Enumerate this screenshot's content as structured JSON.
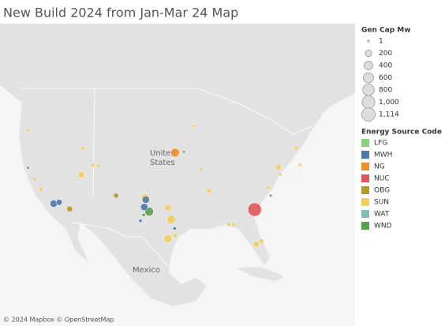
{
  "title": "New Build 2024 from Jan-Mar 24 Map",
  "map_labels": {
    "united_states": [
      "United",
      "States"
    ],
    "mexico": "Mexico"
  },
  "attribution": "© 2024 Mapbox © OpenStreetMap",
  "size_legend": {
    "title": "Gen Cap Mw",
    "values": [
      1,
      200,
      400,
      600,
      800,
      {
        "value": 1000,
        "label": "1,000"
      },
      {
        "value": 1114,
        "label": "1,114"
      }
    ]
  },
  "color_legend": {
    "title": "Energy Source Code",
    "items": [
      {
        "code": "LFG",
        "color": "#8cd17d"
      },
      {
        "code": "MWH",
        "color": "#4e79a7"
      },
      {
        "code": "NG",
        "color": "#f28e2b"
      },
      {
        "code": "NUC",
        "color": "#e15759"
      },
      {
        "code": "OBG",
        "color": "#b6992d"
      },
      {
        "code": "SUN",
        "color": "#f1ce63"
      },
      {
        "code": "WAT",
        "color": "#86bcb6"
      },
      {
        "code": "WND",
        "color": "#59a14f"
      }
    ]
  },
  "points": [
    {
      "code": "NUC",
      "lon": -81.8,
      "lat": 33.1,
      "mw": 1114
    },
    {
      "code": "NG",
      "lon": -96.2,
      "lat": 41.3,
      "mw": 400
    },
    {
      "code": "WND",
      "lon": -100.9,
      "lat": 32.8,
      "mw": 400
    },
    {
      "code": "MWH",
      "lon": -101.5,
      "lat": 34.6,
      "mw": 250
    },
    {
      "code": "MWH",
      "lon": -101.8,
      "lat": 33.5,
      "mw": 250
    },
    {
      "code": "MWH",
      "lon": -118.2,
      "lat": 34.0,
      "mw": 250
    },
    {
      "code": "MWH",
      "lon": -117.2,
      "lat": 34.2,
      "mw": 150
    },
    {
      "code": "OBG",
      "lon": -115.3,
      "lat": 33.2,
      "mw": 150
    },
    {
      "code": "OBG",
      "lon": -106.9,
      "lat": 35.2,
      "mw": 100
    },
    {
      "code": "SUN",
      "lon": -101.6,
      "lat": 34.8,
      "mw": 400
    },
    {
      "code": "SUN",
      "lon": -96.9,
      "lat": 31.6,
      "mw": 400
    },
    {
      "code": "SUN",
      "lon": -97.5,
      "lat": 28.6,
      "mw": 350
    },
    {
      "code": "SUN",
      "lon": -97.5,
      "lat": 33.4,
      "mw": 200
    },
    {
      "code": "SUN",
      "lon": -113.2,
      "lat": 38.2,
      "mw": 200
    },
    {
      "code": "SUN",
      "lon": -90.1,
      "lat": 35.9,
      "mw": 100
    },
    {
      "code": "SUN",
      "lon": -81.5,
      "lat": 27.7,
      "mw": 150
    },
    {
      "code": "SUN",
      "lon": -80.6,
      "lat": 28.2,
      "mw": 80
    },
    {
      "code": "SUN",
      "lon": -77.5,
      "lat": 39.3,
      "mw": 150
    },
    {
      "code": "SUN",
      "lon": -74.3,
      "lat": 41.9,
      "mw": 40
    },
    {
      "code": "SUN",
      "lon": -112.8,
      "lat": 41.9,
      "mw": 40
    },
    {
      "code": "SUN",
      "lon": -86.5,
      "lat": 30.8,
      "mw": 40
    },
    {
      "code": "SUN",
      "lon": -85.6,
      "lat": 30.8,
      "mw": 40
    },
    {
      "code": "SUN",
      "lon": -121.6,
      "lat": 37.6,
      "mw": 30
    },
    {
      "code": "SUN",
      "lon": -120.5,
      "lat": 36.1,
      "mw": 60
    },
    {
      "code": "SUN",
      "lon": -111.1,
      "lat": 39.6,
      "mw": 40
    },
    {
      "code": "SUN",
      "lon": -110.1,
      "lat": 39.5,
      "mw": 30
    },
    {
      "code": "SUN",
      "lon": -91.6,
      "lat": 39.0,
      "mw": 30
    },
    {
      "code": "SUN",
      "lon": -73.6,
      "lat": 39.6,
      "mw": 20
    },
    {
      "code": "SUN",
      "lon": -77.2,
      "lat": 38.3,
      "mw": 30
    },
    {
      "code": "SUN",
      "lon": -79.3,
      "lat": 36.4,
      "mw": 20
    },
    {
      "code": "SUN",
      "lon": -122.8,
      "lat": 44.3,
      "mw": 20
    },
    {
      "code": "SUN",
      "lon": -96.2,
      "lat": 29.1,
      "mw": 60
    },
    {
      "code": "SUN",
      "lon": -92.8,
      "lat": 44.8,
      "mw": 20
    },
    {
      "code": "WND",
      "lon": -101.9,
      "lat": 32.3,
      "mw": 20
    },
    {
      "code": "WND",
      "lon": -94.6,
      "lat": 41.4,
      "mw": 10
    },
    {
      "code": "MWH",
      "lon": -102.5,
      "lat": 31.4,
      "mw": 20
    },
    {
      "code": "MWH",
      "lon": -96.3,
      "lat": 30.2,
      "mw": 20
    },
    {
      "code": "MWH",
      "lon": -78.9,
      "lat": 35.2,
      "mw": 10
    },
    {
      "code": "MWH",
      "lon": -122.8,
      "lat": 39.2,
      "mw": 10
    }
  ]
}
